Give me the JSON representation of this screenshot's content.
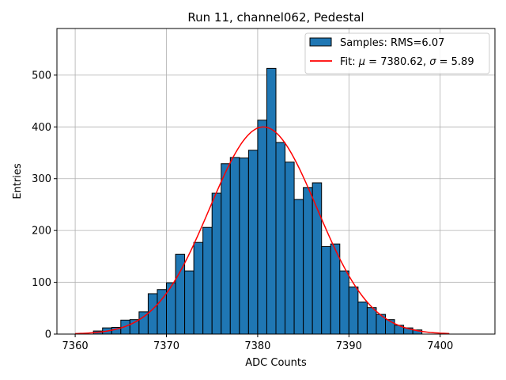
{
  "chart_data": {
    "type": "bar",
    "title": "Run 11, channel062, Pedestal",
    "xlabel": "ADC Counts",
    "ylabel": "Entries",
    "xlim": [
      7358,
      7406
    ],
    "ylim": [
      0,
      590
    ],
    "xticks": [
      7360,
      7370,
      7380,
      7390,
      7400
    ],
    "yticks": [
      0,
      100,
      200,
      300,
      400,
      500
    ],
    "grid": true,
    "legend_position": "top-right",
    "bar_color": "#1f77b4",
    "fit_color": "#ff0000",
    "bin_width": 1,
    "bins": [
      {
        "x": 7362,
        "v": 6
      },
      {
        "x": 7363,
        "v": 12
      },
      {
        "x": 7364,
        "v": 13
      },
      {
        "x": 7365,
        "v": 27
      },
      {
        "x": 7366,
        "v": 28
      },
      {
        "x": 7367,
        "v": 43
      },
      {
        "x": 7368,
        "v": 78
      },
      {
        "x": 7369,
        "v": 86
      },
      {
        "x": 7370,
        "v": 99
      },
      {
        "x": 7371,
        "v": 154
      },
      {
        "x": 7372,
        "v": 122
      },
      {
        "x": 7373,
        "v": 177
      },
      {
        "x": 7374,
        "v": 206
      },
      {
        "x": 7375,
        "v": 272
      },
      {
        "x": 7376,
        "v": 329
      },
      {
        "x": 7377,
        "v": 341
      },
      {
        "x": 7378,
        "v": 340
      },
      {
        "x": 7379,
        "v": 355
      },
      {
        "x": 7380,
        "v": 413
      },
      {
        "x": 7381,
        "v": 513
      },
      {
        "x": 7382,
        "v": 370
      },
      {
        "x": 7383,
        "v": 332
      },
      {
        "x": 7384,
        "v": 260
      },
      {
        "x": 7385,
        "v": 283
      },
      {
        "x": 7386,
        "v": 292
      },
      {
        "x": 7387,
        "v": 169
      },
      {
        "x": 7388,
        "v": 174
      },
      {
        "x": 7389,
        "v": 122
      },
      {
        "x": 7390,
        "v": 91
      },
      {
        "x": 7391,
        "v": 62
      },
      {
        "x": 7392,
        "v": 51
      },
      {
        "x": 7393,
        "v": 38
      },
      {
        "x": 7394,
        "v": 28
      },
      {
        "x": 7395,
        "v": 17
      },
      {
        "x": 7396,
        "v": 12
      },
      {
        "x": 7397,
        "v": 8
      }
    ],
    "fit": {
      "mu": 7380.62,
      "sigma": 5.89,
      "amplitude": 400,
      "x_range": [
        7360,
        7401
      ]
    },
    "legend": {
      "samples_label": "Samples: RMS=6.07",
      "fit_prefix": "Fit: ",
      "mu_symbol": "μ",
      "mu_text": " = 7380.62, ",
      "sigma_symbol": "σ",
      "sigma_text": " = 5.89"
    }
  }
}
